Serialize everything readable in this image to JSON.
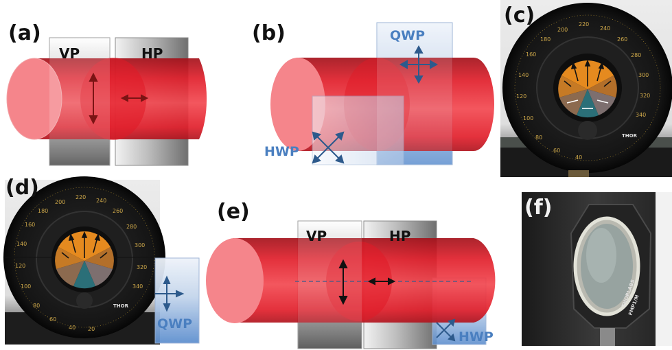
{
  "panels": {
    "a": {
      "label": "(a)",
      "left_filter": "VP",
      "right_filter": "HP"
    },
    "b": {
      "label": "(b)",
      "plate_top": "QWP",
      "plate_bottom": "HWP"
    },
    "c": {
      "label": "(c)",
      "dial_numbers": [
        "200",
        "220",
        "240",
        "260",
        "280",
        "300",
        "320",
        "340",
        "180",
        "160",
        "140",
        "120",
        "100",
        "80",
        "60",
        "40"
      ],
      "brand": "THOR"
    },
    "d": {
      "label": "(d)",
      "plate": "QWP",
      "dial_numbers": [
        "200",
        "220",
        "240",
        "260",
        "280",
        "300",
        "320",
        "340",
        "180",
        "160",
        "140",
        "120",
        "100",
        "80",
        "60",
        "40",
        "20"
      ],
      "brand": "THOR"
    },
    "e": {
      "label": "(e)",
      "left_filter": "VP",
      "right_filter": "HP",
      "plate": "HWP"
    },
    "f": {
      "label": "(f)",
      "brand": "THORLABS",
      "model": "FMP1/M"
    }
  },
  "colors": {
    "beam": "#e8202a",
    "beam_face": "#f58a8e",
    "plate_blue": "#4a7fc0",
    "arrow_blue": "#2d5a8c",
    "dial_black": "#141414",
    "dial_orange": "#e58a1f"
  }
}
